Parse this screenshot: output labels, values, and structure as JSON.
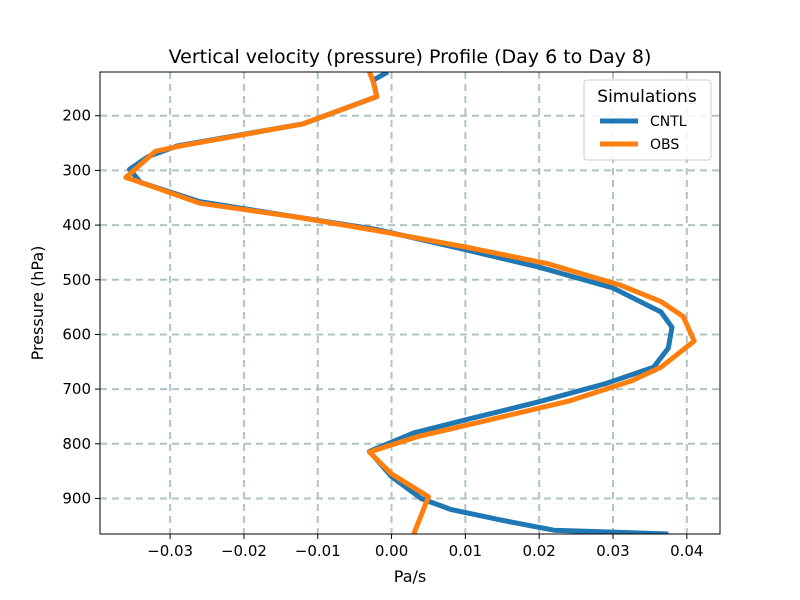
{
  "chart_data": {
    "type": "line",
    "title": "Vertical velocity (pressure) Profile (Day 6 to Day 8)",
    "xlabel": "Pa/s",
    "ylabel": "Pressure (hPa)",
    "xlim": [
      -0.0395,
      0.0445
    ],
    "ylim": [
      120,
      965
    ],
    "y_inverted": true,
    "x_ticks": [
      -0.03,
      -0.02,
      -0.01,
      0.0,
      0.01,
      0.02,
      0.03,
      0.04
    ],
    "x_tick_labels": [
      "−0.03",
      "−0.02",
      "−0.01",
      "0.00",
      "0.01",
      "0.02",
      "0.03",
      "0.04"
    ],
    "y_ticks": [
      200,
      300,
      400,
      500,
      600,
      700,
      800,
      900
    ],
    "y_tick_labels": [
      "200",
      "300",
      "400",
      "500",
      "600",
      "700",
      "800",
      "900"
    ],
    "grid": true,
    "legend": {
      "title": "Simulations",
      "placement": "top-right"
    },
    "series": [
      {
        "name": "CNTL",
        "color": "#1f77b4",
        "points": [
          [
            -0.0005,
            120
          ],
          [
            -0.0025,
            135
          ],
          [
            -0.002,
            165
          ],
          [
            -0.012,
            215
          ],
          [
            -0.029,
            255
          ],
          [
            -0.033,
            275
          ],
          [
            -0.0355,
            298
          ],
          [
            -0.034,
            322
          ],
          [
            -0.026,
            357
          ],
          [
            -0.013,
            385
          ],
          [
            -0.002,
            408
          ],
          [
            0.01,
            445
          ],
          [
            0.02,
            477
          ],
          [
            0.03,
            515
          ],
          [
            0.0365,
            559
          ],
          [
            0.038,
            587
          ],
          [
            0.0375,
            625
          ],
          [
            0.0355,
            660
          ],
          [
            0.029,
            690
          ],
          [
            0.02,
            723
          ],
          [
            0.011,
            753
          ],
          [
            0.003,
            780
          ],
          [
            -0.003,
            814
          ],
          [
            0.0,
            860
          ],
          [
            0.004,
            900
          ],
          [
            0.008,
            920
          ],
          [
            0.015,
            940
          ],
          [
            0.022,
            958
          ],
          [
            0.0375,
            965
          ]
        ]
      },
      {
        "name": "OBS",
        "color": "#ff7f0e",
        "points": [
          [
            -0.003,
            120
          ],
          [
            -0.0025,
            137
          ],
          [
            -0.002,
            165
          ],
          [
            -0.012,
            215
          ],
          [
            -0.0285,
            255
          ],
          [
            -0.032,
            265
          ],
          [
            -0.036,
            313
          ],
          [
            -0.034,
            322
          ],
          [
            -0.026,
            360
          ],
          [
            -0.013,
            385
          ],
          [
            -0.002,
            410
          ],
          [
            0.01,
            440
          ],
          [
            0.021,
            470
          ],
          [
            0.031,
            510
          ],
          [
            0.0365,
            540
          ],
          [
            0.0395,
            567
          ],
          [
            0.041,
            612
          ],
          [
            0.0365,
            660
          ],
          [
            0.0325,
            685
          ],
          [
            0.024,
            722
          ],
          [
            0.013,
            757
          ],
          [
            0.0035,
            787
          ],
          [
            -0.003,
            815
          ],
          [
            0.0,
            855
          ],
          [
            0.005,
            897
          ],
          [
            0.003,
            965
          ]
        ]
      }
    ]
  }
}
